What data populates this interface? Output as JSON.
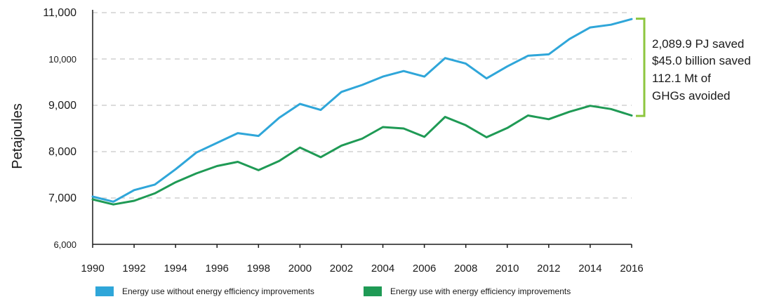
{
  "chart_data": {
    "type": "line",
    "title": "",
    "xlabel": "",
    "ylabel": "Petajoules",
    "xlim": [
      1990,
      2016
    ],
    "ylim": [
      6000,
      11000
    ],
    "grid": "horizontal-dashed",
    "legend_position": "bottom",
    "x_ticks": [
      "1990",
      "1992",
      "1994",
      "1996",
      "1998",
      "2000",
      "2002",
      "2004",
      "2006",
      "2008",
      "2010",
      "2012",
      "2014",
      "2016"
    ],
    "y_ticks": [
      {
        "value": 6000,
        "label": "6,000"
      },
      {
        "value": 7000,
        "label": "7,000"
      },
      {
        "value": 8000,
        "label": "8,000"
      },
      {
        "value": 9000,
        "label": "9,000"
      },
      {
        "value": 10000,
        "label": "10,000"
      },
      {
        "value": 11000,
        "label": "11,000"
      }
    ],
    "x": [
      1990,
      1991,
      1992,
      1993,
      1994,
      1995,
      1996,
      1997,
      1998,
      1999,
      2000,
      2001,
      2002,
      2003,
      2004,
      2005,
      2006,
      2007,
      2008,
      2009,
      2010,
      2011,
      2012,
      2013,
      2014,
      2015,
      2016
    ],
    "series": [
      {
        "name": "Energy use without energy efficiency improvements",
        "color": "#2fa6d9",
        "values": [
          7030,
          6920,
          7170,
          7290,
          7620,
          7980,
          8190,
          8400,
          8340,
          8730,
          9030,
          8900,
          9290,
          9440,
          9620,
          9740,
          9620,
          10020,
          9900,
          9580,
          9840,
          10070,
          10100,
          10430,
          10680,
          10740,
          10860
        ]
      },
      {
        "name": "Energy use with energy efficiency improvements",
        "color": "#1f9a55",
        "values": [
          6970,
          6860,
          6940,
          7100,
          7340,
          7530,
          7690,
          7780,
          7600,
          7800,
          8090,
          7880,
          8130,
          8280,
          8530,
          8500,
          8320,
          8750,
          8570,
          8310,
          8510,
          8780,
          8700,
          8860,
          8990,
          8920,
          8780
        ]
      }
    ],
    "annotation": {
      "lines": [
        "2,089.9 PJ saved",
        "$45.0 billion saved",
        "112.1 Mt of",
        "GHGs avoided"
      ],
      "bracket_color": "#8dc63f",
      "bracket_from": 8770,
      "bracket_to": 10870
    }
  }
}
